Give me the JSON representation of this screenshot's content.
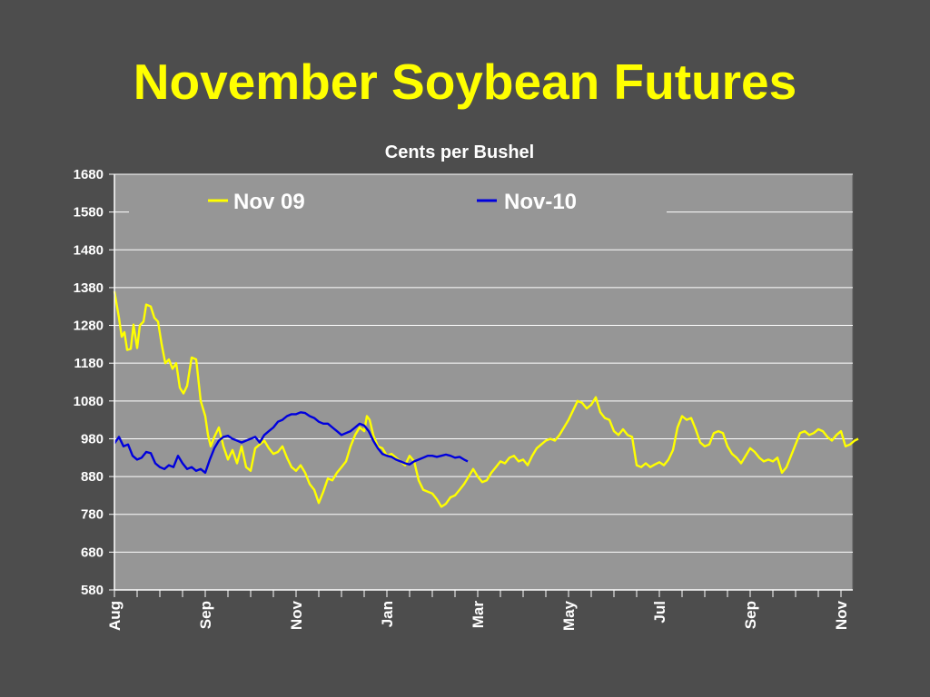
{
  "slide": {
    "title": "November Soybean Futures"
  },
  "chart_data": {
    "type": "line",
    "title": "November Soybean Futures",
    "subtitle": "Cents per Bushel",
    "xlabel": "",
    "ylabel": "",
    "ylim": [
      580,
      1680
    ],
    "yticks": [
      580,
      680,
      780,
      880,
      980,
      1080,
      1180,
      1280,
      1380,
      1480,
      1580,
      1680
    ],
    "xlim": [
      0,
      16.4
    ],
    "xticks": [
      {
        "x": 0,
        "label": "Aug"
      },
      {
        "x": 2,
        "label": "Sep"
      },
      {
        "x": 4,
        "label": "Nov"
      },
      {
        "x": 6,
        "label": "Jan"
      },
      {
        "x": 8,
        "label": "Mar"
      },
      {
        "x": 10,
        "label": "May"
      },
      {
        "x": 12,
        "label": "Jul"
      },
      {
        "x": 14,
        "label": "Sep"
      },
      {
        "x": 16,
        "label": "Nov"
      }
    ],
    "grid": true,
    "legend_position": "top",
    "plot_background": "#969696",
    "series": [
      {
        "name": "Nov 09",
        "color": "#ffff00",
        "points": [
          [
            0.0,
            1370
          ],
          [
            0.1,
            1300
          ],
          [
            0.16,
            1250
          ],
          [
            0.22,
            1262
          ],
          [
            0.28,
            1215
          ],
          [
            0.36,
            1218
          ],
          [
            0.42,
            1282
          ],
          [
            0.5,
            1220
          ],
          [
            0.56,
            1280
          ],
          [
            0.64,
            1290
          ],
          [
            0.7,
            1335
          ],
          [
            0.8,
            1330
          ],
          [
            0.88,
            1300
          ],
          [
            0.96,
            1290
          ],
          [
            1.04,
            1230
          ],
          [
            1.12,
            1180
          ],
          [
            1.2,
            1190
          ],
          [
            1.28,
            1165
          ],
          [
            1.36,
            1180
          ],
          [
            1.44,
            1115
          ],
          [
            1.52,
            1100
          ],
          [
            1.6,
            1120
          ],
          [
            1.7,
            1195
          ],
          [
            1.8,
            1190
          ],
          [
            1.9,
            1080
          ],
          [
            2.0,
            1040
          ],
          [
            2.06,
            990
          ],
          [
            2.12,
            960
          ],
          [
            2.2,
            985
          ],
          [
            2.3,
            1010
          ],
          [
            2.4,
            960
          ],
          [
            2.5,
            925
          ],
          [
            2.6,
            950
          ],
          [
            2.7,
            915
          ],
          [
            2.8,
            960
          ],
          [
            2.9,
            905
          ],
          [
            3.0,
            895
          ],
          [
            3.1,
            955
          ],
          [
            3.2,
            965
          ],
          [
            3.3,
            975
          ],
          [
            3.4,
            955
          ],
          [
            3.5,
            940
          ],
          [
            3.6,
            945
          ],
          [
            3.7,
            960
          ],
          [
            3.8,
            930
          ],
          [
            3.9,
            905
          ],
          [
            4.0,
            895
          ],
          [
            4.1,
            910
          ],
          [
            4.2,
            890
          ],
          [
            4.3,
            860
          ],
          [
            4.4,
            845
          ],
          [
            4.5,
            810
          ],
          [
            4.6,
            840
          ],
          [
            4.7,
            875
          ],
          [
            4.8,
            870
          ],
          [
            4.9,
            890
          ],
          [
            5.0,
            905
          ],
          [
            5.1,
            920
          ],
          [
            5.2,
            960
          ],
          [
            5.3,
            990
          ],
          [
            5.4,
            1010
          ],
          [
            5.5,
            1000
          ],
          [
            5.56,
            1040
          ],
          [
            5.62,
            1030
          ],
          [
            5.7,
            990
          ],
          [
            5.8,
            960
          ],
          [
            5.9,
            955
          ],
          [
            6.0,
            935
          ],
          [
            6.1,
            940
          ],
          [
            6.2,
            930
          ],
          [
            6.3,
            920
          ],
          [
            6.4,
            910
          ],
          [
            6.5,
            935
          ],
          [
            6.6,
            920
          ],
          [
            6.7,
            870
          ],
          [
            6.8,
            845
          ],
          [
            6.9,
            840
          ],
          [
            7.0,
            835
          ],
          [
            7.1,
            820
          ],
          [
            7.2,
            800
          ],
          [
            7.3,
            808
          ],
          [
            7.4,
            825
          ],
          [
            7.5,
            830
          ],
          [
            7.6,
            845
          ],
          [
            7.7,
            860
          ],
          [
            7.8,
            880
          ],
          [
            7.9,
            900
          ],
          [
            8.0,
            880
          ],
          [
            8.1,
            865
          ],
          [
            8.2,
            870
          ],
          [
            8.3,
            890
          ],
          [
            8.4,
            905
          ],
          [
            8.5,
            920
          ],
          [
            8.6,
            915
          ],
          [
            8.7,
            930
          ],
          [
            8.8,
            935
          ],
          [
            8.9,
            920
          ],
          [
            9.0,
            925
          ],
          [
            9.1,
            910
          ],
          [
            9.2,
            935
          ],
          [
            9.3,
            955
          ],
          [
            9.4,
            965
          ],
          [
            9.5,
            975
          ],
          [
            9.6,
            980
          ],
          [
            9.7,
            975
          ],
          [
            9.8,
            990
          ],
          [
            9.9,
            1010
          ],
          [
            10.0,
            1030
          ],
          [
            10.1,
            1055
          ],
          [
            10.2,
            1080
          ],
          [
            10.3,
            1075
          ],
          [
            10.4,
            1060
          ],
          [
            10.5,
            1070
          ],
          [
            10.6,
            1090
          ],
          [
            10.7,
            1050
          ],
          [
            10.8,
            1035
          ],
          [
            10.9,
            1030
          ],
          [
            11.0,
            1000
          ],
          [
            11.1,
            990
          ],
          [
            11.2,
            1005
          ],
          [
            11.3,
            990
          ],
          [
            11.4,
            985
          ],
          [
            11.5,
            910
          ],
          [
            11.6,
            905
          ],
          [
            11.7,
            915
          ],
          [
            11.8,
            905
          ],
          [
            11.9,
            912
          ],
          [
            12.0,
            918
          ],
          [
            12.1,
            910
          ],
          [
            12.2,
            925
          ],
          [
            12.3,
            950
          ],
          [
            12.4,
            1010
          ],
          [
            12.5,
            1040
          ],
          [
            12.6,
            1030
          ],
          [
            12.7,
            1035
          ],
          [
            12.8,
            1005
          ],
          [
            12.9,
            970
          ],
          [
            13.0,
            960
          ],
          [
            13.1,
            965
          ],
          [
            13.2,
            995
          ],
          [
            13.3,
            1000
          ],
          [
            13.4,
            995
          ],
          [
            13.5,
            960
          ],
          [
            13.6,
            940
          ],
          [
            13.7,
            930
          ],
          [
            13.8,
            915
          ],
          [
            13.9,
            935
          ],
          [
            14.0,
            955
          ],
          [
            14.1,
            945
          ],
          [
            14.2,
            930
          ],
          [
            14.3,
            920
          ],
          [
            14.4,
            925
          ],
          [
            14.5,
            920
          ],
          [
            14.6,
            930
          ],
          [
            14.7,
            890
          ],
          [
            14.8,
            905
          ],
          [
            14.9,
            935
          ],
          [
            15.0,
            965
          ],
          [
            15.1,
            995
          ],
          [
            15.2,
            1000
          ],
          [
            15.3,
            990
          ],
          [
            15.4,
            995
          ],
          [
            15.5,
            1005
          ],
          [
            15.6,
            1000
          ],
          [
            15.7,
            985
          ],
          [
            15.8,
            975
          ],
          [
            15.9,
            990
          ],
          [
            16.0,
            1000
          ],
          [
            16.1,
            960
          ],
          [
            16.2,
            965
          ],
          [
            16.3,
            975
          ],
          [
            16.38,
            980
          ]
        ]
      },
      {
        "name": "Nov-10",
        "color": "#0000dd",
        "points": [
          [
            0.0,
            968
          ],
          [
            0.1,
            985
          ],
          [
            0.2,
            960
          ],
          [
            0.3,
            965
          ],
          [
            0.4,
            935
          ],
          [
            0.5,
            925
          ],
          [
            0.6,
            930
          ],
          [
            0.7,
            945
          ],
          [
            0.8,
            942
          ],
          [
            0.9,
            915
          ],
          [
            1.0,
            905
          ],
          [
            1.1,
            900
          ],
          [
            1.2,
            910
          ],
          [
            1.3,
            905
          ],
          [
            1.4,
            935
          ],
          [
            1.5,
            915
          ],
          [
            1.6,
            900
          ],
          [
            1.7,
            905
          ],
          [
            1.8,
            895
          ],
          [
            1.9,
            900
          ],
          [
            2.0,
            890
          ],
          [
            2.1,
            925
          ],
          [
            2.2,
            955
          ],
          [
            2.3,
            975
          ],
          [
            2.4,
            985
          ],
          [
            2.5,
            988
          ],
          [
            2.6,
            980
          ],
          [
            2.7,
            975
          ],
          [
            2.8,
            970
          ],
          [
            2.9,
            975
          ],
          [
            3.0,
            980
          ],
          [
            3.1,
            985
          ],
          [
            3.2,
            970
          ],
          [
            3.3,
            990
          ],
          [
            3.4,
            1000
          ],
          [
            3.5,
            1010
          ],
          [
            3.6,
            1025
          ],
          [
            3.7,
            1030
          ],
          [
            3.8,
            1040
          ],
          [
            3.9,
            1045
          ],
          [
            4.0,
            1045
          ],
          [
            4.1,
            1050
          ],
          [
            4.2,
            1048
          ],
          [
            4.3,
            1040
          ],
          [
            4.4,
            1035
          ],
          [
            4.5,
            1025
          ],
          [
            4.6,
            1020
          ],
          [
            4.7,
            1020
          ],
          [
            4.8,
            1010
          ],
          [
            4.9,
            1000
          ],
          [
            5.0,
            990
          ],
          [
            5.1,
            995
          ],
          [
            5.2,
            1000
          ],
          [
            5.3,
            1010
          ],
          [
            5.4,
            1020
          ],
          [
            5.5,
            1015
          ],
          [
            5.6,
            1000
          ],
          [
            5.7,
            975
          ],
          [
            5.8,
            955
          ],
          [
            5.9,
            940
          ],
          [
            6.0,
            935
          ],
          [
            6.1,
            932
          ],
          [
            6.2,
            925
          ],
          [
            6.3,
            920
          ],
          [
            6.4,
            915
          ],
          [
            6.5,
            912
          ],
          [
            6.6,
            920
          ],
          [
            6.7,
            925
          ],
          [
            6.8,
            930
          ],
          [
            6.9,
            935
          ],
          [
            7.0,
            935
          ],
          [
            7.1,
            932
          ],
          [
            7.2,
            935
          ],
          [
            7.3,
            938
          ],
          [
            7.4,
            935
          ],
          [
            7.5,
            930
          ],
          [
            7.6,
            932
          ],
          [
            7.7,
            925
          ],
          [
            7.78,
            920
          ]
        ]
      }
    ]
  }
}
